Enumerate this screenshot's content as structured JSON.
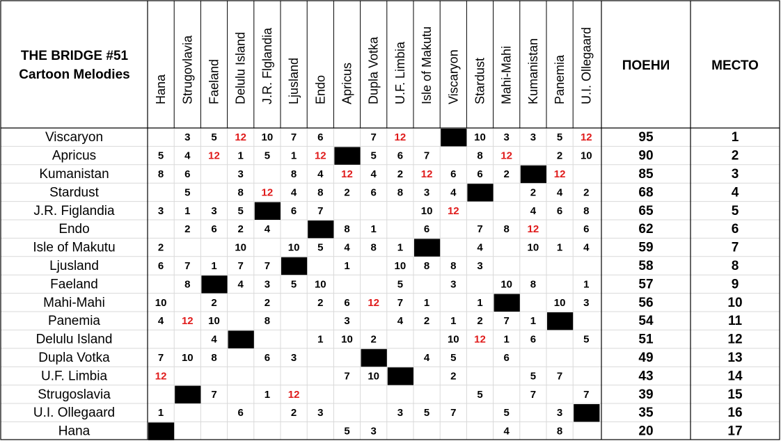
{
  "title": {
    "line1": "THE BRIDGE #51",
    "line2": "Cartoon Melodies"
  },
  "headers": {
    "points": "ПОЕНИ",
    "place": "МЕСТО"
  },
  "columns": [
    "Hana",
    "Strugovlavia",
    "Faeland",
    "Delulu Island",
    "J.R. Flglandia",
    "Ljusland",
    "Endo",
    "Apricus",
    "Dupla Votka",
    "U.F. Limbia",
    "Isle of Makutu",
    "Viscaryon",
    "Stardust",
    "Mahi-Mahi",
    "Kumanistan",
    "Panemia",
    "U.I. Ollegaard"
  ],
  "colors": {
    "twelve_points": "#e01b1b",
    "self_vote_cell": "#000000",
    "grid_line": "#d9d9d9",
    "border": "#000000"
  },
  "rows": [
    {
      "name": "Viscaryon",
      "self": 11,
      "votes": [
        null,
        "3",
        "5",
        "12",
        "10",
        "7",
        "6",
        null,
        "7",
        "12",
        null,
        null,
        "10",
        "3",
        "3",
        "5",
        "12"
      ],
      "points": "95",
      "place": "1"
    },
    {
      "name": "Apricus",
      "self": 7,
      "votes": [
        "5",
        "4",
        "12",
        "1",
        "5",
        "1",
        "12",
        null,
        "5",
        "6",
        "7",
        null,
        "8",
        "12",
        null,
        "2",
        "10"
      ],
      "points": "90",
      "place": "2"
    },
    {
      "name": "Kumanistan",
      "self": 14,
      "votes": [
        "8",
        "6",
        null,
        "3",
        null,
        "8",
        "4",
        "12",
        "4",
        "2",
        "12",
        "6",
        "6",
        "2",
        null,
        "12",
        null
      ],
      "points": "85",
      "place": "3"
    },
    {
      "name": "Stardust",
      "self": 12,
      "votes": [
        null,
        "5",
        null,
        "8",
        "12",
        "4",
        "8",
        "2",
        "6",
        "8",
        "3",
        "4",
        null,
        null,
        "2",
        "4",
        "2"
      ],
      "points": "68",
      "place": "4"
    },
    {
      "name": "J.R. Figlandia",
      "self": 4,
      "votes": [
        "3",
        "1",
        "3",
        "5",
        null,
        "6",
        "7",
        null,
        null,
        null,
        "10",
        "12",
        null,
        null,
        "4",
        "6",
        "8"
      ],
      "points": "65",
      "place": "5"
    },
    {
      "name": "Endo",
      "self": 6,
      "votes": [
        null,
        "2",
        "6",
        "2",
        "4",
        null,
        null,
        "8",
        "1",
        null,
        "6",
        null,
        "7",
        "8",
        "12",
        null,
        "6"
      ],
      "points": "62",
      "place": "6"
    },
    {
      "name": "Isle of Makutu",
      "self": 10,
      "votes": [
        "2",
        null,
        null,
        "10",
        null,
        "10",
        "5",
        "4",
        "8",
        "1",
        null,
        null,
        "4",
        null,
        "10",
        "1",
        "4"
      ],
      "points": "59",
      "place": "7"
    },
    {
      "name": "Ljusland",
      "self": 5,
      "votes": [
        "6",
        "7",
        "1",
        "7",
        "7",
        null,
        null,
        "1",
        null,
        "10",
        "8",
        "8",
        "3",
        null,
        null,
        null,
        null
      ],
      "points": "58",
      "place": "8"
    },
    {
      "name": "Faeland",
      "self": 2,
      "votes": [
        null,
        "8",
        null,
        "4",
        "3",
        "5",
        "10",
        null,
        null,
        "5",
        null,
        "3",
        null,
        "10",
        "8",
        null,
        "1"
      ],
      "points": "57",
      "place": "9"
    },
    {
      "name": "Mahi-Mahi",
      "self": 13,
      "votes": [
        "10",
        null,
        "2",
        null,
        "2",
        null,
        "2",
        "6",
        "12",
        "7",
        "1",
        null,
        "1",
        null,
        null,
        "10",
        "3"
      ],
      "points": "56",
      "place": "10"
    },
    {
      "name": "Panemia",
      "self": 15,
      "votes": [
        "4",
        "12",
        "10",
        null,
        "8",
        null,
        null,
        "3",
        null,
        "4",
        "2",
        "1",
        "2",
        "7",
        "1",
        null,
        null
      ],
      "points": "54",
      "place": "11"
    },
    {
      "name": "Delulu Island",
      "self": 3,
      "votes": [
        null,
        null,
        "4",
        null,
        null,
        null,
        "1",
        "10",
        "2",
        null,
        null,
        "10",
        "12",
        "1",
        "6",
        null,
        "5"
      ],
      "points": "51",
      "place": "12"
    },
    {
      "name": "Dupla Votka",
      "self": 8,
      "votes": [
        "7",
        "10",
        "8",
        null,
        "6",
        "3",
        null,
        null,
        null,
        null,
        "4",
        "5",
        null,
        "6",
        null,
        null,
        null
      ],
      "points": "49",
      "place": "13"
    },
    {
      "name": "U.F. Limbia",
      "self": 9,
      "votes": [
        "12",
        null,
        null,
        null,
        null,
        null,
        null,
        "7",
        "10",
        null,
        null,
        "2",
        null,
        null,
        "5",
        "7",
        null
      ],
      "points": "43",
      "place": "14"
    },
    {
      "name": "Strugoslavia",
      "self": 1,
      "votes": [
        null,
        null,
        "7",
        null,
        "1",
        "12",
        null,
        null,
        null,
        null,
        null,
        null,
        "5",
        null,
        "7",
        null,
        "7"
      ],
      "points": "39",
      "place": "15"
    },
    {
      "name": "U.I. Ollegaard",
      "self": 16,
      "votes": [
        "1",
        null,
        null,
        "6",
        null,
        "2",
        "3",
        null,
        null,
        "3",
        "5",
        "7",
        null,
        "5",
        null,
        "3",
        null
      ],
      "points": "35",
      "place": "16"
    },
    {
      "name": "Hana",
      "self": 0,
      "votes": [
        null,
        null,
        null,
        null,
        null,
        null,
        null,
        "5",
        "3",
        null,
        null,
        null,
        null,
        "4",
        null,
        "8",
        null
      ],
      "points": "20",
      "place": "17"
    }
  ]
}
